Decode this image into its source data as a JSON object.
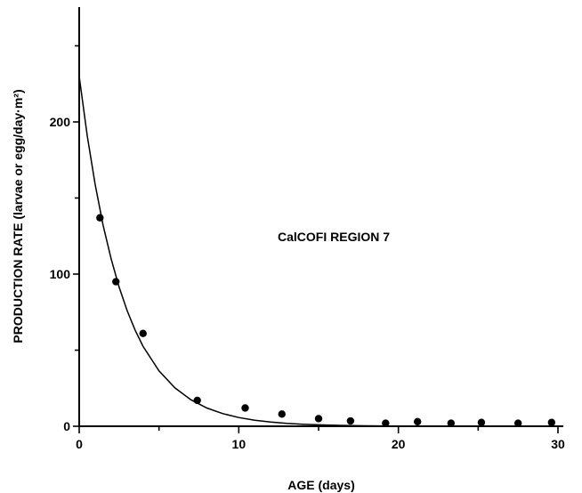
{
  "chart_data": {
    "type": "scatter",
    "xlabel": "AGE (days)",
    "ylabel": "PRODUCTION RATE (larvae or egg/day·m²)",
    "annotation": "CalCOFI REGION 7",
    "xlim": [
      0,
      30
    ],
    "ylim": [
      0,
      250
    ],
    "x_ticks": [
      0,
      10,
      20,
      30
    ],
    "y_ticks": [
      0,
      100,
      200
    ],
    "grid": false,
    "series": [
      {
        "kind": "points",
        "x": [
          1.3,
          2.3,
          4.0,
          7.4,
          10.4,
          12.7,
          15.0,
          17.0,
          19.2,
          21.2,
          23.3,
          25.2,
          27.5,
          29.6
        ],
        "y": [
          137,
          95,
          61,
          17,
          12,
          8,
          5,
          3.5,
          2,
          3,
          2,
          2.5,
          2,
          2.5
        ]
      },
      {
        "kind": "fitted-curve",
        "x": [
          0,
          0.5,
          1,
          1.5,
          2,
          2.5,
          3,
          3.5,
          4,
          5,
          6,
          7,
          8,
          9,
          10,
          11,
          12,
          13,
          14,
          15,
          16,
          18,
          20,
          22,
          24,
          26,
          28,
          30
        ],
        "y": [
          230,
          191,
          159,
          132,
          110,
          91.5,
          76.1,
          63.2,
          52.6,
          36.4,
          25.2,
          17.4,
          12.0,
          8.33,
          5.76,
          3.99,
          2.76,
          1.91,
          1.32,
          0.91,
          0.63,
          0.3,
          0.14,
          0.07,
          0.03,
          0.02,
          0.01,
          0.0
        ]
      }
    ]
  }
}
